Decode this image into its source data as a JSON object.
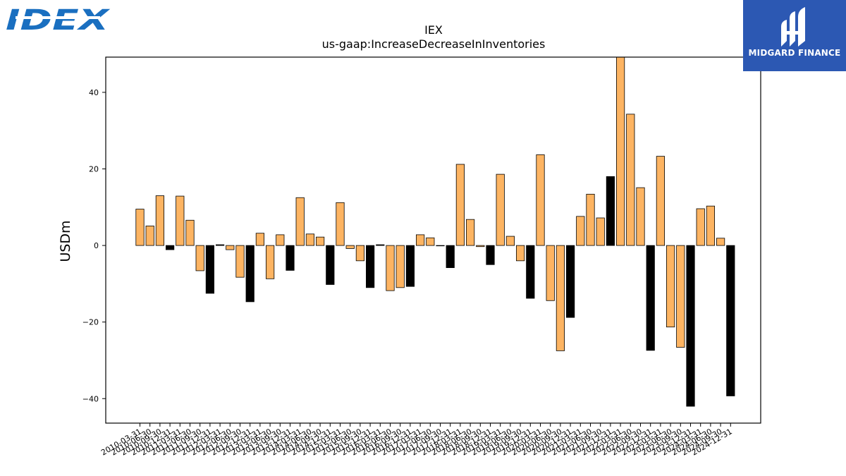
{
  "header": {
    "brand_logo_text": "IDEX",
    "sponsor_name": "MIDGARD FINANCE"
  },
  "chart_data": {
    "type": "bar",
    "title": "IEX",
    "subtitle": "us-gaap:IncreaseDecreaseInInventories",
    "xlabel": "",
    "ylabel": "USDm",
    "ylim": [
      -46.4,
      49.2
    ],
    "yticks": [
      -40,
      -20,
      0,
      20,
      40
    ],
    "grid": false,
    "colors": {
      "default": "#fdb462",
      "highlight": "#000000",
      "edge": "#000000"
    },
    "categories": [
      "2010-03-31",
      "2010-06-30",
      "2010-09-30",
      "2010-12-31",
      "2011-03-31",
      "2011-06-30",
      "2011-09-30",
      "2011-12-31",
      "2012-03-31",
      "2012-06-30",
      "2012-09-30",
      "2012-12-31",
      "2013-03-31",
      "2013-06-30",
      "2013-09-30",
      "2013-12-31",
      "2014-03-31",
      "2014-06-30",
      "2014-09-30",
      "2014-12-31",
      "2015-03-31",
      "2015-06-30",
      "2015-09-30",
      "2015-12-31",
      "2016-03-31",
      "2016-06-30",
      "2016-09-30",
      "2016-12-31",
      "2017-03-31",
      "2017-06-30",
      "2017-09-30",
      "2017-12-31",
      "2018-03-31",
      "2018-06-30",
      "2018-09-30",
      "2018-12-31",
      "2019-03-31",
      "2019-06-30",
      "2019-09-30",
      "2019-12-31",
      "2020-03-31",
      "2020-06-30",
      "2020-09-30",
      "2020-12-31",
      "2021-03-31",
      "2021-06-30",
      "2021-09-30",
      "2021-12-31",
      "2022-03-31",
      "2022-06-30",
      "2022-09-30",
      "2022-12-31",
      "2023-03-31",
      "2023-06-30",
      "2023-09-30",
      "2023-12-31",
      "2024-03-31",
      "2024-06-30",
      "2024-09-30",
      "2024-12-31"
    ],
    "values": [
      9.5,
      5.1,
      13.0,
      -1.1,
      12.9,
      6.6,
      -6.6,
      -12.5,
      0.2,
      -1.1,
      -8.3,
      -14.7,
      3.2,
      -8.7,
      2.8,
      -6.5,
      12.5,
      3.0,
      2.2,
      -10.2,
      11.2,
      -0.8,
      -4.0,
      -11.0,
      0.2,
      -11.8,
      -11.0,
      -10.7,
      2.8,
      2.0,
      0.0,
      -5.8,
      21.2,
      6.8,
      -0.3,
      -5.0,
      18.6,
      2.4,
      -4.0,
      -13.8,
      23.7,
      -14.4,
      -27.5,
      -18.8,
      7.6,
      13.4,
      7.2,
      18.0,
      49.2,
      34.3,
      15.1,
      -27.4,
      23.3,
      -21.3,
      -26.6,
      -42.0,
      9.6,
      10.3,
      1.9,
      -39.3
    ],
    "highlight": [
      false,
      false,
      false,
      true,
      false,
      false,
      false,
      true,
      true,
      false,
      false,
      true,
      false,
      false,
      false,
      true,
      false,
      false,
      false,
      true,
      false,
      false,
      false,
      true,
      true,
      false,
      false,
      true,
      false,
      false,
      false,
      true,
      false,
      false,
      false,
      true,
      false,
      false,
      false,
      true,
      false,
      false,
      false,
      true,
      false,
      false,
      false,
      true,
      false,
      false,
      false,
      true,
      false,
      false,
      false,
      true,
      false,
      false,
      false,
      true
    ]
  }
}
